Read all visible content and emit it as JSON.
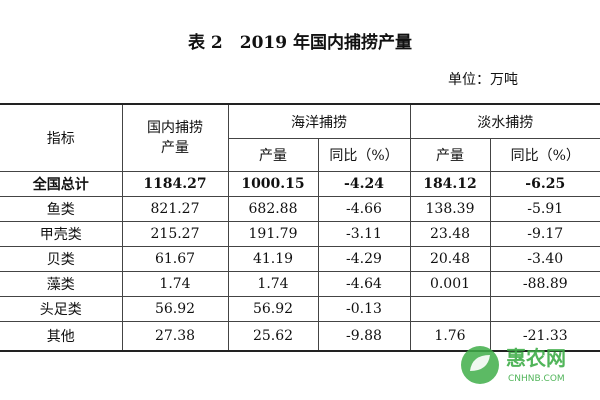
{
  "header": {
    "title": "表 2　2019 年国内捕捞产量",
    "unit": "单位：万吨"
  },
  "table": {
    "columns": {
      "indicator": "指标",
      "domestic": "国内捕捞产量",
      "marine": "海洋捕捞",
      "freshwater": "淡水捕捞"
    },
    "marine_subheaders": [
      "产量",
      "同比（%）"
    ],
    "freshwater_subheaders": [
      "产量",
      "同比（%）"
    ],
    "rows": [
      [
        "全国总计",
        "1184.27",
        "1000.15",
        "-4.24",
        "184.12",
        "-6.25"
      ],
      [
        "鱼类",
        "821.27",
        "682.88",
        "-4.66",
        "138.39",
        "-5.91"
      ],
      [
        "甲壳类",
        "215.27",
        "191.79",
        "-3.11",
        "23.48",
        "-9.17"
      ],
      [
        "贝类",
        "61.67",
        "41.19",
        "-4.29",
        "20.48",
        "-3.40"
      ],
      [
        "藻类",
        "1.74",
        "1.74",
        "-4.64",
        "0.001",
        "-88.89"
      ],
      [
        "头足类",
        "56.92",
        "56.92",
        "-0.13",
        null,
        null
      ],
      [
        "其他",
        "27.38",
        "25.62",
        "-9.88",
        "1.76",
        "-21.33"
      ]
    ]
  },
  "watermark": {
    "brand": "惠农网",
    "url": "CNHNB.COM"
  }
}
